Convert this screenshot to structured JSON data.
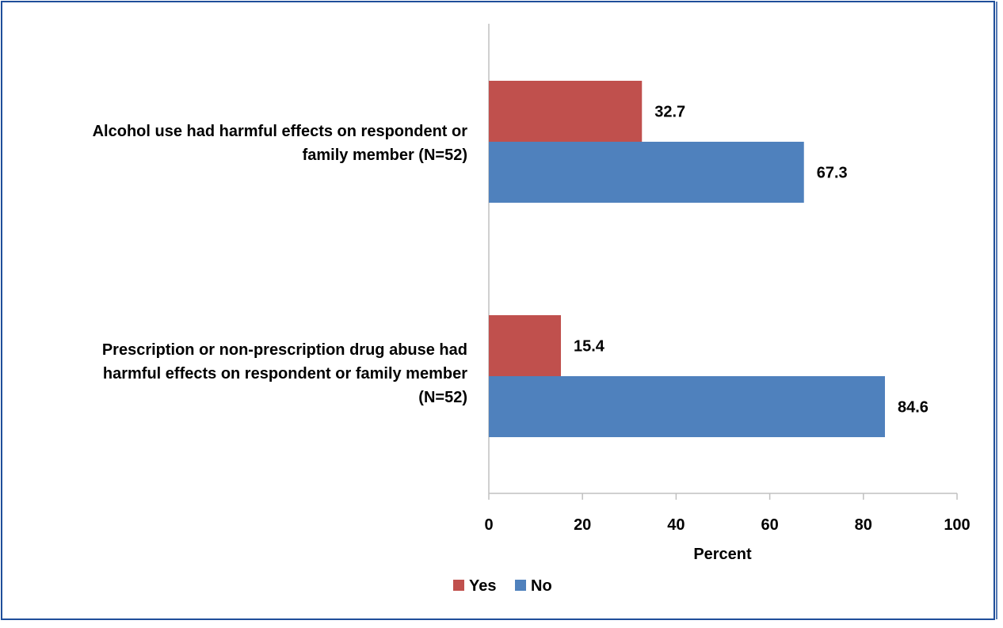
{
  "chart_data": {
    "type": "bar",
    "orientation": "horizontal",
    "categories": [
      [
        "Alcohol use had harmful effects on respondent or",
        "family member (N=52)"
      ],
      [
        "Prescription or non-prescription drug abuse had",
        "harmful effects on respondent or family member",
        "(N=52)"
      ]
    ],
    "series": [
      {
        "name": "Yes",
        "color": "#C0504D",
        "values": [
          32.7,
          15.4
        ],
        "labels": [
          "32.7",
          "15.4"
        ]
      },
      {
        "name": "No",
        "color": "#4F81BD",
        "values": [
          67.3,
          84.6
        ],
        "labels": [
          "67.3",
          "84.6"
        ]
      }
    ],
    "xlabel": "Percent",
    "xlim": [
      0,
      100
    ],
    "xticks": [
      0,
      20,
      40,
      60,
      80,
      100
    ],
    "legend": {
      "position": "bottom",
      "items": [
        "Yes",
        "No"
      ]
    },
    "grid": false,
    "frame_color": "#1F4E9A",
    "axis_color": "#C0C0C0"
  }
}
